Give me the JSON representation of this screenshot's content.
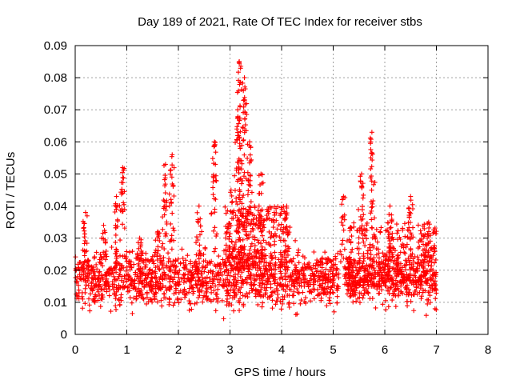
{
  "chart_data": {
    "type": "scatter",
    "title": "Day 189 of 2021, Rate Of TEC Index for receiver stbs",
    "xlabel": "GPS time / hours",
    "ylabel": "ROTI / TECUs",
    "xlim": [
      0,
      8
    ],
    "ylim": [
      0,
      0.09
    ],
    "xticks": [
      "0",
      "1",
      "2",
      "3",
      "4",
      "5",
      "6",
      "7",
      "8"
    ],
    "yticks": [
      "0",
      "0.01",
      "0.02",
      "0.03",
      "0.04",
      "0.05",
      "0.06",
      "0.07",
      "0.08",
      "0.09"
    ],
    "grid": true,
    "marker": "plus",
    "color": "#ff0000",
    "data_extent_hours": [
      0,
      7.0
    ],
    "baseline_band": [
      0.005,
      0.03
    ],
    "peaks": [
      {
        "x": 0.2,
        "y": 0.038
      },
      {
        "x": 0.55,
        "y": 0.034
      },
      {
        "x": 0.8,
        "y": 0.043
      },
      {
        "x": 0.92,
        "y": 0.052
      },
      {
        "x": 1.25,
        "y": 0.03
      },
      {
        "x": 1.6,
        "y": 0.032
      },
      {
        "x": 1.75,
        "y": 0.053
      },
      {
        "x": 1.88,
        "y": 0.056
      },
      {
        "x": 2.4,
        "y": 0.04
      },
      {
        "x": 2.7,
        "y": 0.06
      },
      {
        "x": 3.02,
        "y": 0.045
      },
      {
        "x": 3.15,
        "y": 0.07
      },
      {
        "x": 3.18,
        "y": 0.085
      },
      {
        "x": 3.28,
        "y": 0.08
      },
      {
        "x": 3.38,
        "y": 0.06
      },
      {
        "x": 3.6,
        "y": 0.05
      },
      {
        "x": 4.1,
        "y": 0.04
      },
      {
        "x": 5.2,
        "y": 0.043
      },
      {
        "x": 5.55,
        "y": 0.05
      },
      {
        "x": 5.75,
        "y": 0.063
      },
      {
        "x": 6.1,
        "y": 0.04
      },
      {
        "x": 6.5,
        "y": 0.043
      },
      {
        "x": 6.85,
        "y": 0.035
      }
    ]
  }
}
